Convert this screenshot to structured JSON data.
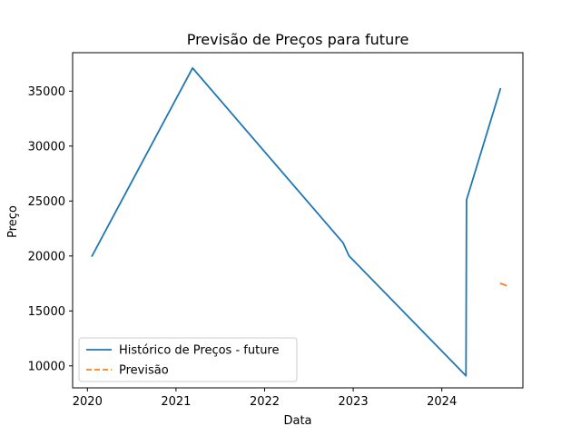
{
  "chart_data": {
    "type": "line",
    "title": "Previsão de Preços para future",
    "xlabel": "Data",
    "ylabel": "Preço",
    "xlim": [
      "2019-11-01",
      "2024-12-01"
    ],
    "ylim": [
      8000,
      38500
    ],
    "x_ticks": [
      "2020",
      "2021",
      "2022",
      "2023",
      "2024"
    ],
    "y_ticks": [
      10000,
      15000,
      20000,
      25000,
      30000,
      35000
    ],
    "grid": false,
    "legend_position": "lower-left",
    "series": [
      {
        "name": "Histórico de Preços - future",
        "color": "#1f77b4",
        "style": "solid",
        "x": [
          "2020-01-20",
          "2021-03-10",
          "2022-11-20",
          "2022-12-15",
          "2024-04-10",
          "2024-04-12",
          "2024-08-30"
        ],
        "y": [
          20000,
          37100,
          21200,
          20000,
          9100,
          25100,
          35200
        ]
      },
      {
        "name": "Previsão",
        "color": "#ff7f0e",
        "style": "dashed",
        "x": [
          "2024-09-01",
          "2024-09-25"
        ],
        "y": [
          17500,
          17300
        ]
      }
    ]
  }
}
